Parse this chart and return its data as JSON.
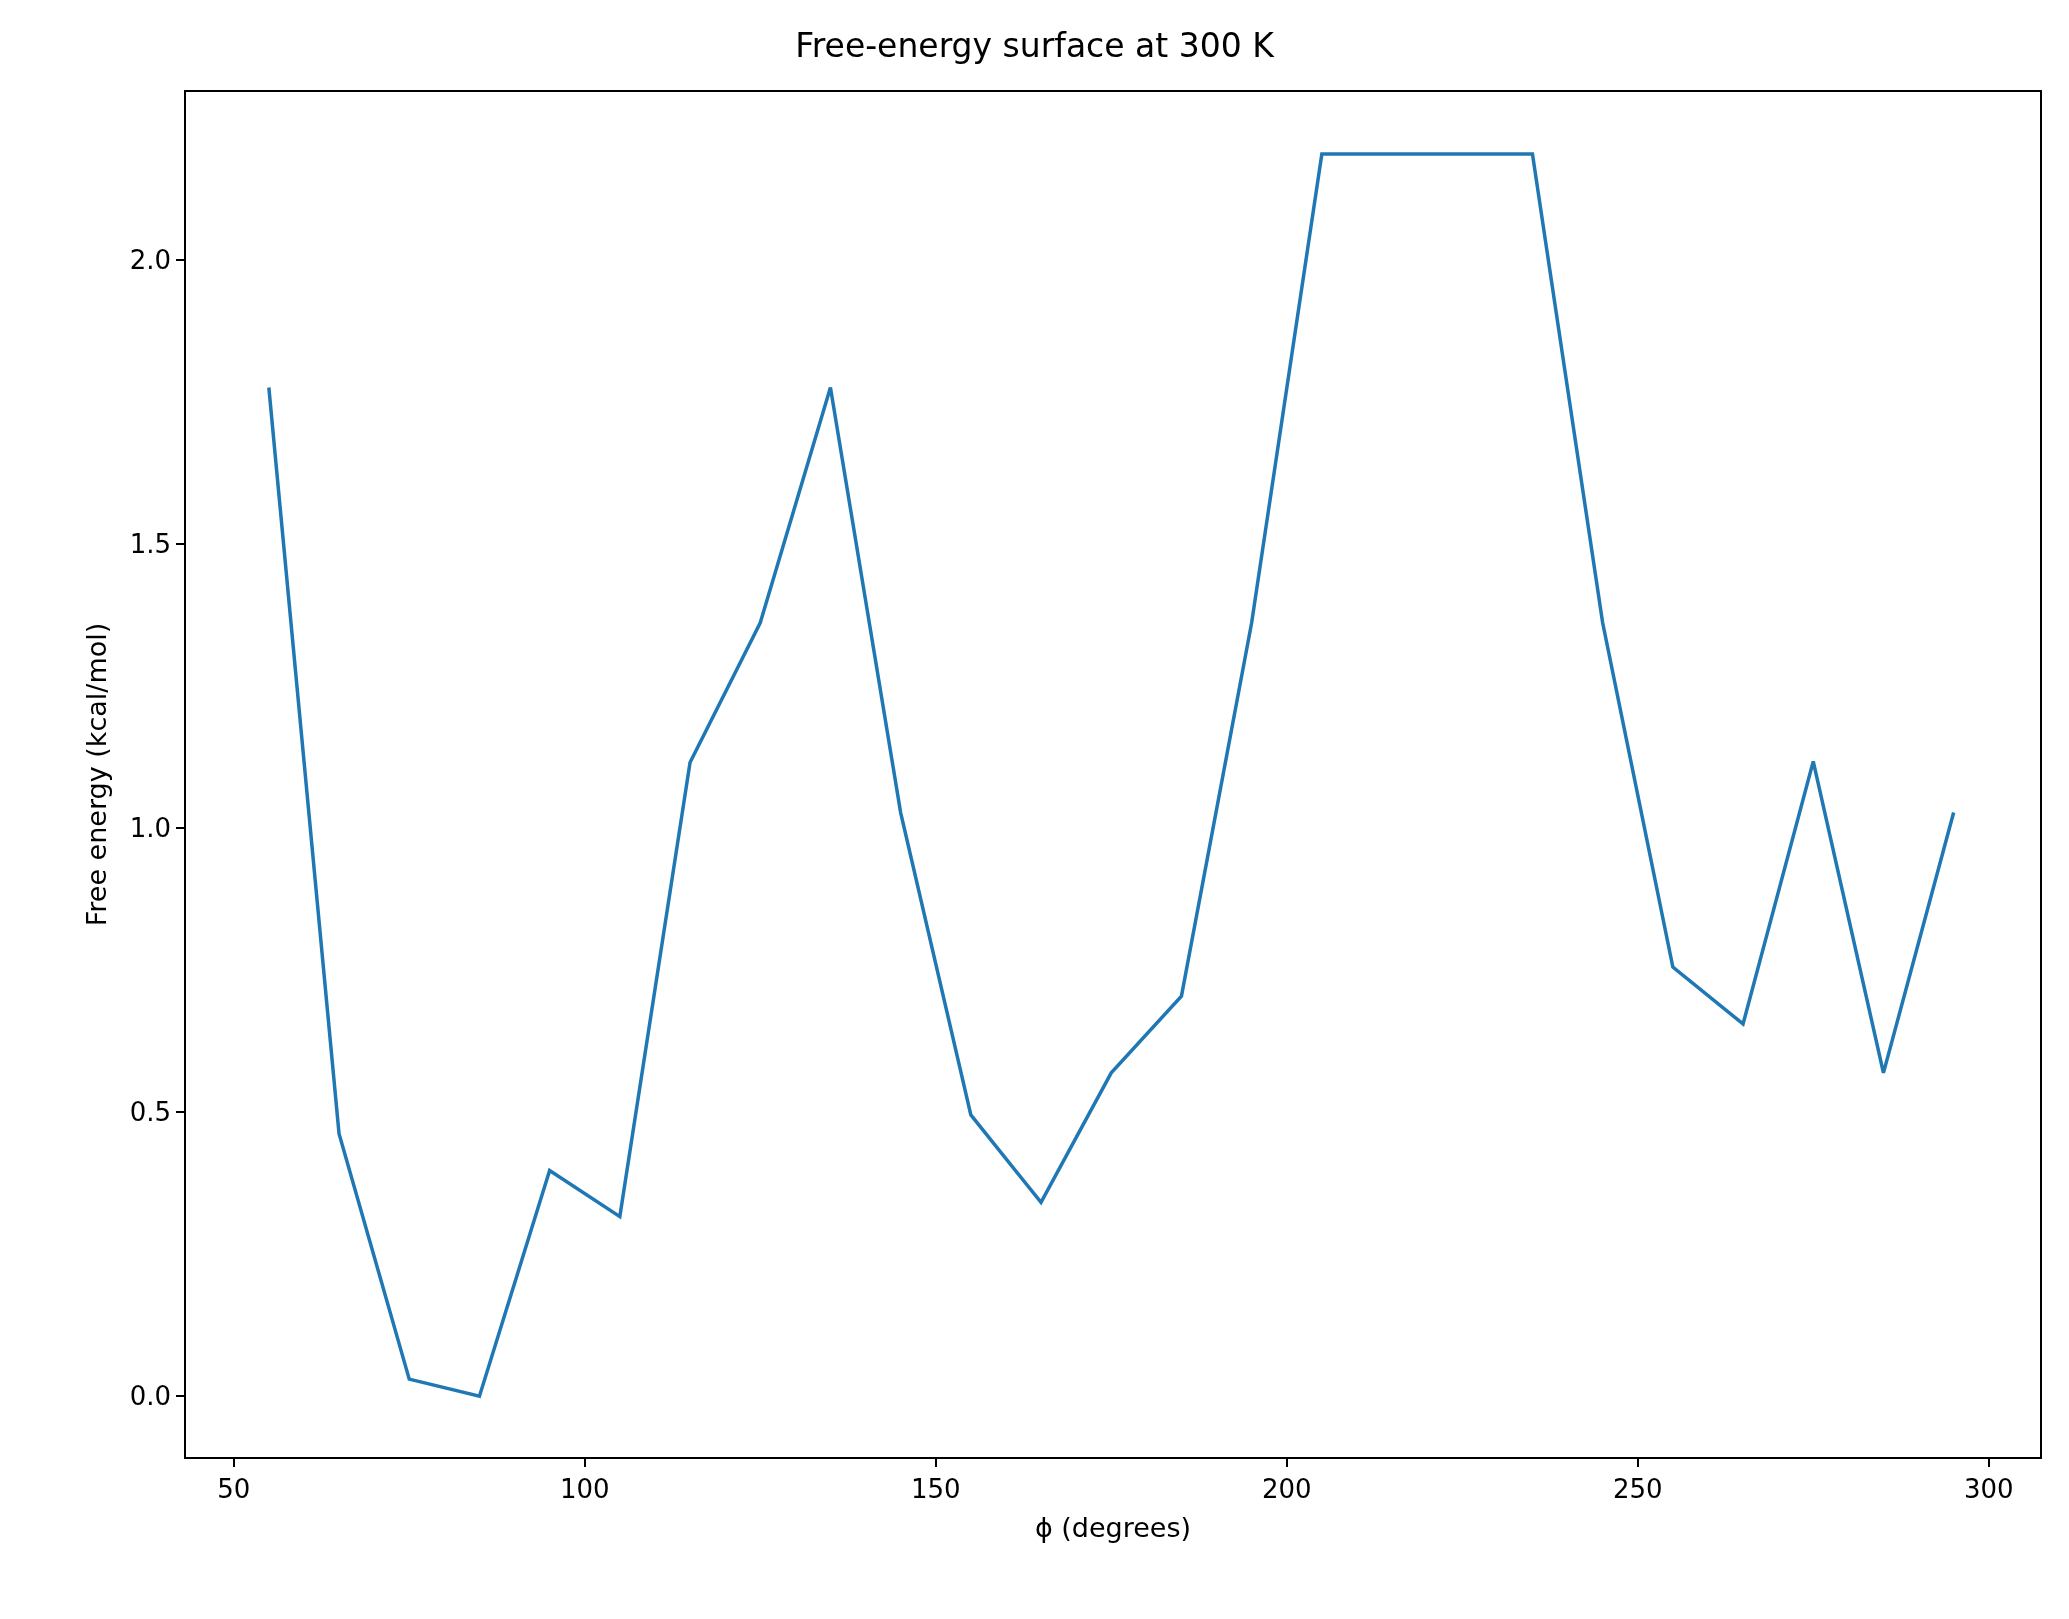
{
  "chart_data": {
    "type": "line",
    "title": "Free-energy surface at 300 K",
    "xlabel": "ϕ (degrees)",
    "ylabel": "Free energy (kcal/mol)",
    "x": [
      55,
      65,
      75,
      85,
      95,
      105,
      115,
      125,
      135,
      145,
      155,
      165,
      175,
      185,
      195,
      205,
      215,
      225,
      235,
      245,
      255,
      265,
      275,
      285,
      295
    ],
    "series": [
      {
        "color": "#1f77b4",
        "values": [
          1.775,
          0.462,
          0.03,
          0.0,
          0.397,
          0.316,
          1.115,
          1.361,
          1.775,
          1.027,
          0.495,
          0.341,
          0.569,
          0.704,
          1.361,
          2.186,
          2.186,
          2.186,
          2.186,
          1.361,
          0.755,
          0.655,
          1.117,
          0.569,
          1.027
        ]
      }
    ],
    "xlim": [
      43.2,
      307.3
    ],
    "ylim": [
      -0.107,
      2.295
    ],
    "xticks": [
      50,
      100,
      150,
      200,
      250,
      300
    ],
    "yticks": [
      {
        "value": 0,
        "label": "0.0"
      },
      {
        "value": 0.5,
        "label": "0.5"
      },
      {
        "value": 1,
        "label": "1.0"
      },
      {
        "value": 1.5,
        "label": "1.5"
      },
      {
        "value": 2,
        "label": "2.0"
      }
    ],
    "marker": "none",
    "line_style": "solid"
  }
}
